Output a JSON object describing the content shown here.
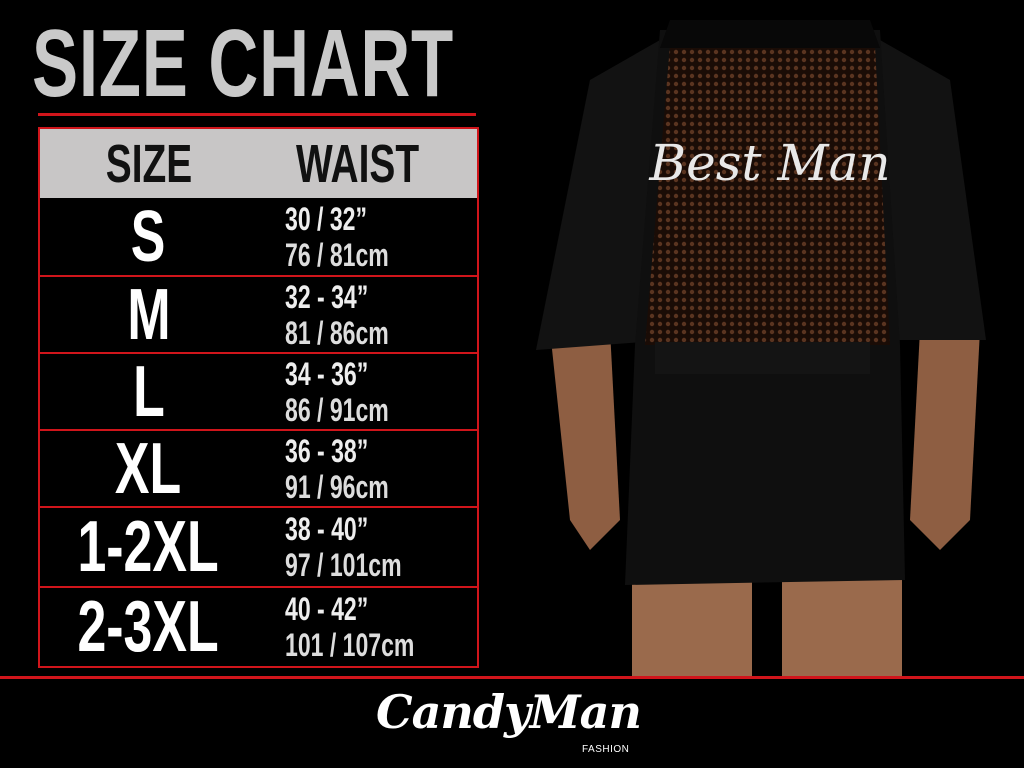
{
  "title": "SIZE CHART",
  "table": {
    "headers": [
      "SIZE",
      "WAIST"
    ],
    "rows": [
      {
        "size": "S",
        "inches": "30 / 32”",
        "cm": "76 / 81cm"
      },
      {
        "size": "M",
        "inches": "32 - 34”",
        "cm": "81 / 86cm"
      },
      {
        "size": "L",
        "inches": "34 - 36”",
        "cm": "86 / 91cm"
      },
      {
        "size": "XL",
        "inches": "36 - 38”",
        "cm": "91 / 96cm"
      },
      {
        "size": "1-2XL",
        "inches": "38 - 40”",
        "cm": "97 / 101cm"
      },
      {
        "size": "2-3XL",
        "inches": "40 - 42”",
        "cm": "101 / 107cm"
      }
    ]
  },
  "photo": {
    "garment_text": "Best Man"
  },
  "logo": {
    "brand": "CandyMan",
    "sub": "FASHION"
  },
  "colors": {
    "accent": "#d0151b",
    "header_bg": "#c8c6c6",
    "title": "#c9c9c9",
    "background": "#000000"
  }
}
